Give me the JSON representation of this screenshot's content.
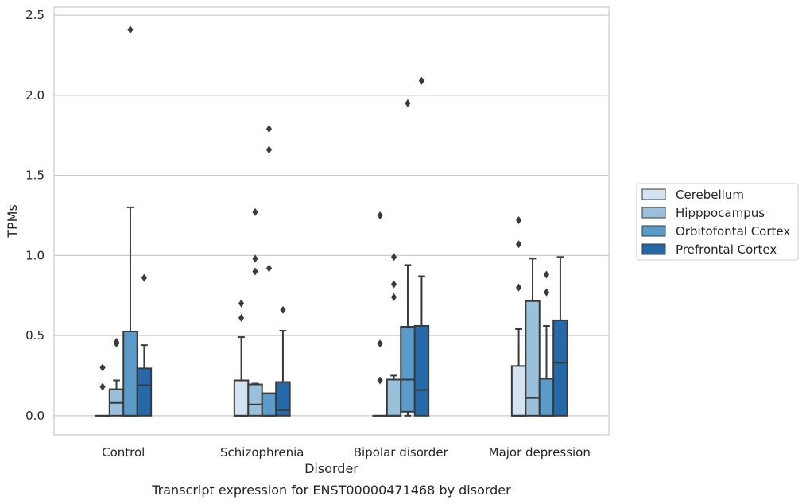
{
  "chart_data": {
    "type": "box",
    "title": "",
    "caption": "Transcript expression for ENST00000471468 by disorder",
    "xlabel": "Disorder",
    "ylabel": "TPMs",
    "ylim": [
      -0.12,
      2.55
    ],
    "yticks": [
      "0.0",
      "0.5",
      "1.0",
      "1.5",
      "2.0",
      "2.5"
    ],
    "ytick_values": [
      0,
      0.5,
      1.0,
      1.5,
      2.0,
      2.5
    ],
    "grid": true,
    "legend_placement": "right",
    "categories": [
      "Control",
      "Schizophrenia",
      "Bipolar disorder",
      "Major depression"
    ],
    "series": [
      {
        "name": "Cerebellum",
        "color": "#d4e3f1",
        "boxes": [
          {
            "q1": 0,
            "median": 0,
            "q3": 0,
            "whisker_low": 0,
            "whisker_high": 0,
            "outliers": [
              0.18,
              0.3
            ]
          },
          {
            "q1": 0,
            "median": 0,
            "q3": 0.22,
            "whisker_low": 0,
            "whisker_high": 0.49,
            "outliers": [
              0.61,
              0.7
            ]
          },
          {
            "q1": 0,
            "median": 0,
            "q3": 0,
            "whisker_low": 0,
            "whisker_high": 0,
            "outliers": [
              0.22,
              0.45,
              1.25
            ]
          },
          {
            "q1": 0,
            "median": 0,
            "q3": 0.31,
            "whisker_low": 0,
            "whisker_high": 0.54,
            "outliers": [
              0.8,
              1.07,
              1.22
            ]
          }
        ]
      },
      {
        "name": "Hipppocampus",
        "color": "#9ac0db",
        "boxes": [
          {
            "q1": 0,
            "median": 0.08,
            "q3": 0.165,
            "whisker_low": 0,
            "whisker_high": 0.22,
            "outliers": [
              0.45,
              0.46
            ]
          },
          {
            "q1": 0,
            "median": 0.07,
            "q3": 0.195,
            "whisker_low": 0,
            "whisker_high": 0.2,
            "outliers": [
              0.9,
              0.98,
              1.27
            ]
          },
          {
            "q1": 0,
            "median": 0,
            "q3": 0.225,
            "whisker_low": 0,
            "whisker_high": 0.25,
            "outliers": [
              0.74,
              0.82,
              0.99
            ]
          },
          {
            "q1": 0,
            "median": 0.11,
            "q3": 0.715,
            "whisker_low": 0,
            "whisker_high": 0.98,
            "outliers": []
          }
        ]
      },
      {
        "name": "Orbitofontal Cortex",
        "color": "#5a9bc9",
        "boxes": [
          {
            "q1": 0,
            "median": 0,
            "q3": 0.525,
            "whisker_low": 0,
            "whisker_high": 1.3,
            "outliers": [
              2.41
            ]
          },
          {
            "q1": 0,
            "median": 0,
            "q3": 0.14,
            "whisker_low": 0,
            "whisker_high": 0.14,
            "outliers": [
              0.92,
              1.66,
              1.79
            ]
          },
          {
            "q1": 0.025,
            "median": 0.225,
            "q3": 0.555,
            "whisker_low": 0,
            "whisker_high": 0.94,
            "outliers": [
              1.95
            ]
          },
          {
            "q1": 0,
            "median": 0,
            "q3": 0.23,
            "whisker_low": 0,
            "whisker_high": 0.56,
            "outliers": [
              0.77,
              0.88
            ]
          }
        ]
      },
      {
        "name": "Prefrontal Cortex",
        "color": "#2669a8",
        "boxes": [
          {
            "q1": 0,
            "median": 0.19,
            "q3": 0.295,
            "whisker_low": 0,
            "whisker_high": 0.44,
            "outliers": [
              0.86
            ]
          },
          {
            "q1": 0,
            "median": 0.035,
            "q3": 0.21,
            "whisker_low": 0,
            "whisker_high": 0.53,
            "outliers": [
              0.66
            ]
          },
          {
            "q1": 0,
            "median": 0.16,
            "q3": 0.56,
            "whisker_low": 0,
            "whisker_high": 0.87,
            "outliers": [
              2.09
            ]
          },
          {
            "q1": 0,
            "median": 0.33,
            "q3": 0.595,
            "whisker_low": 0,
            "whisker_high": 0.99,
            "outliers": []
          }
        ]
      }
    ]
  }
}
